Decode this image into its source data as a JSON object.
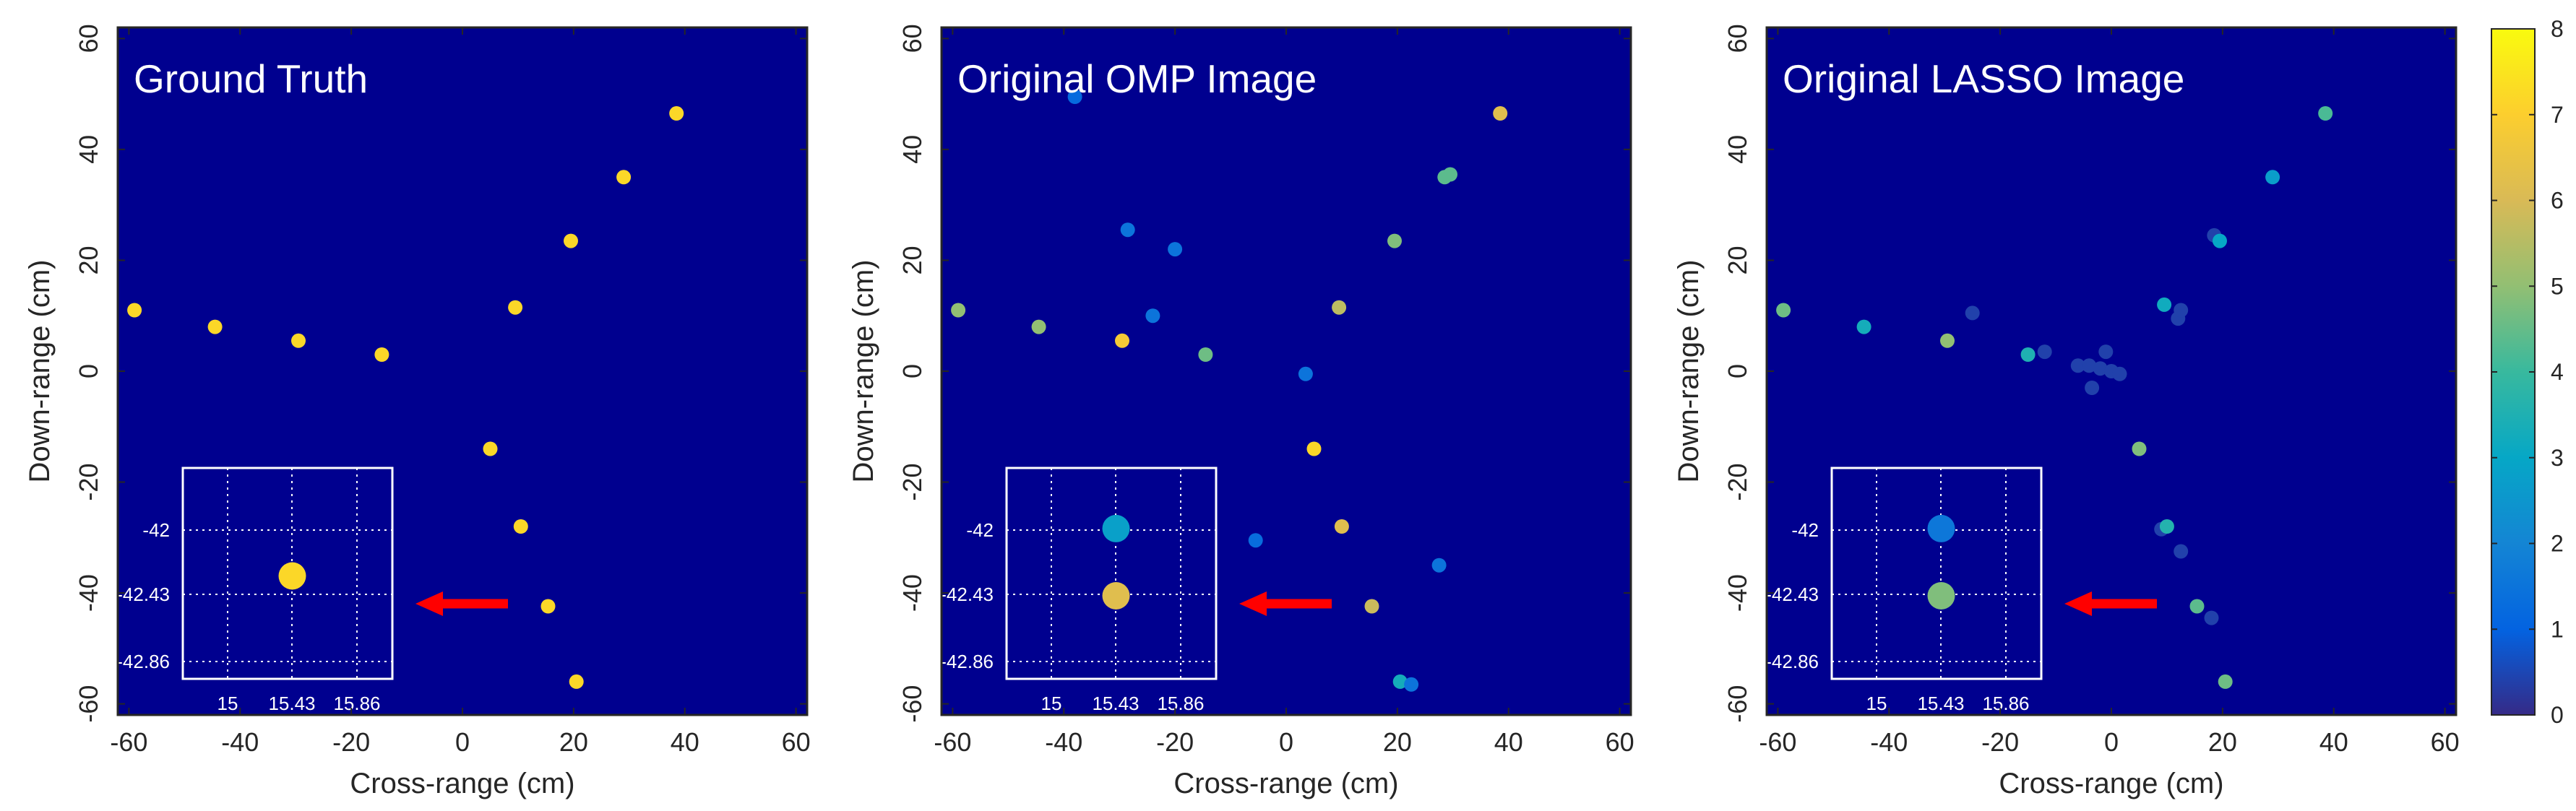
{
  "colormap": {
    "name": "parula",
    "stops": [
      "#352a87",
      "#0363e1",
      "#1485d4",
      "#06a7c6",
      "#38b99e",
      "#92bf73",
      "#d9ba56",
      "#fcce2e",
      "#f9fb0e"
    ]
  },
  "colors": {
    "background": "#00008f",
    "arrow": "#ff0000",
    "axis": "#262626",
    "grid_line": "#ffffff"
  },
  "chart_data": [
    {
      "type": "scatter",
      "title": "Ground Truth",
      "xlabel": "Cross-range (cm)",
      "ylabel": "Down-range (cm)",
      "xlim": [
        -62,
        62
      ],
      "ylim": [
        -62,
        62
      ],
      "xticks": [
        "-60",
        "-40",
        "-20",
        "0",
        "20",
        "40",
        "60"
      ],
      "yticks": [
        "-60",
        "-40",
        "-20",
        "0",
        "20",
        "40",
        "60"
      ],
      "points": [
        {
          "x": -59,
          "y": 11,
          "v": 7.2
        },
        {
          "x": -44.5,
          "y": 8,
          "v": 7.2
        },
        {
          "x": -29.5,
          "y": 5.5,
          "v": 7.2
        },
        {
          "x": -14.5,
          "y": 3,
          "v": 7.2
        },
        {
          "x": 5,
          "y": -14,
          "v": 7.2
        },
        {
          "x": 9.5,
          "y": 11.5,
          "v": 7.2
        },
        {
          "x": 10.5,
          "y": -28,
          "v": 7.2
        },
        {
          "x": 15.4,
          "y": -42.4,
          "v": 7.2
        },
        {
          "x": 19.5,
          "y": 23.5,
          "v": 7.2
        },
        {
          "x": 20.5,
          "y": -56,
          "v": 7.2
        },
        {
          "x": 29,
          "y": 35,
          "v": 7.2
        },
        {
          "x": 38.5,
          "y": 46.5,
          "v": 7.2
        }
      ],
      "inset": {
        "xticks": [
          "15",
          "15.43",
          "15.86"
        ],
        "yticks": [
          "-42",
          "-42.43",
          "-42.86"
        ],
        "points": [
          {
            "x": 15.43,
            "y": -42.3,
            "v": 7.2
          }
        ]
      }
    },
    {
      "type": "scatter",
      "title": "Original OMP Image",
      "xlabel": "Cross-range (cm)",
      "ylabel": "Down-range (cm)",
      "xlim": [
        -62,
        62
      ],
      "ylim": [
        -62,
        62
      ],
      "xticks": [
        "-60",
        "-40",
        "-20",
        "0",
        "20",
        "40",
        "60"
      ],
      "yticks": [
        "-60",
        "-40",
        "-20",
        "0",
        "20",
        "40",
        "60"
      ],
      "points": [
        {
          "x": -59,
          "y": 11,
          "v": 5
        },
        {
          "x": -44.5,
          "y": 8,
          "v": 5
        },
        {
          "x": -38,
          "y": 49.5,
          "v": 1.2
        },
        {
          "x": -29.5,
          "y": 5.5,
          "v": 6.8
        },
        {
          "x": -28.5,
          "y": 25.5,
          "v": 1.5
        },
        {
          "x": -24,
          "y": 10,
          "v": 1.5
        },
        {
          "x": -20,
          "y": 22,
          "v": 1.5
        },
        {
          "x": -14.5,
          "y": 3,
          "v": 4.6
        },
        {
          "x": -5.5,
          "y": -30.5,
          "v": 1.3
        },
        {
          "x": 3.5,
          "y": -0.5,
          "v": 1.5
        },
        {
          "x": 5,
          "y": -14,
          "v": 7.2
        },
        {
          "x": 9.5,
          "y": 11.5,
          "v": 5.6
        },
        {
          "x": 10,
          "y": -28,
          "v": 6.2
        },
        {
          "x": 15.4,
          "y": -42.4,
          "v": 5.8
        },
        {
          "x": 19.5,
          "y": 23.5,
          "v": 4.8
        },
        {
          "x": 20.5,
          "y": -56,
          "v": 3.3
        },
        {
          "x": 22.5,
          "y": -56.5,
          "v": 1.5
        },
        {
          "x": 27.5,
          "y": -35,
          "v": 1.5
        },
        {
          "x": 28.5,
          "y": 35,
          "v": 4.4
        },
        {
          "x": 29.5,
          "y": 35.5,
          "v": 4.4
        },
        {
          "x": 38.5,
          "y": 46.5,
          "v": 6.2
        }
      ],
      "inset": {
        "xticks": [
          "15",
          "15.43",
          "15.86"
        ],
        "yticks": [
          "-42",
          "-42.43",
          "-42.86"
        ],
        "points": [
          {
            "x": 15.43,
            "y": -41.99,
            "v": 2.8
          },
          {
            "x": 15.43,
            "y": -42.43,
            "v": 6.2
          }
        ]
      }
    },
    {
      "type": "scatter",
      "title": "Original LASSO Image",
      "xlabel": "Cross-range (cm)",
      "ylabel": "Down-range (cm)",
      "xlim": [
        -62,
        62
      ],
      "ylim": [
        -62,
        62
      ],
      "xticks": [
        "-60",
        "-40",
        "-20",
        "0",
        "20",
        "40",
        "60"
      ],
      "yticks": [
        "-60",
        "-40",
        "-20",
        "0",
        "20",
        "40",
        "60"
      ],
      "points": [
        {
          "x": -59,
          "y": 11,
          "v": 4.6
        },
        {
          "x": -44.5,
          "y": 8,
          "v": 3.3
        },
        {
          "x": -29.5,
          "y": 5.5,
          "v": 5
        },
        {
          "x": -25,
          "y": 10.5,
          "v": 0.4
        },
        {
          "x": -15,
          "y": 3,
          "v": 3.5
        },
        {
          "x": -12,
          "y": 3.5,
          "v": 0.4
        },
        {
          "x": -6,
          "y": 1,
          "v": 0.4
        },
        {
          "x": -4,
          "y": 1,
          "v": 0.4
        },
        {
          "x": -3.5,
          "y": -3,
          "v": 0.4
        },
        {
          "x": -2,
          "y": 0.5,
          "v": 0.4
        },
        {
          "x": -1,
          "y": 3.5,
          "v": 0.4
        },
        {
          "x": 0,
          "y": 0,
          "v": 0.4
        },
        {
          "x": 1.5,
          "y": -0.5,
          "v": 0.4
        },
        {
          "x": 5,
          "y": -14,
          "v": 4.8
        },
        {
          "x": 9.5,
          "y": 12,
          "v": 3.2
        },
        {
          "x": 9,
          "y": -28.5,
          "v": 0.4
        },
        {
          "x": 10,
          "y": -28,
          "v": 3.6
        },
        {
          "x": 12,
          "y": 9.5,
          "v": 0.4
        },
        {
          "x": 12.5,
          "y": 11,
          "v": 0.4
        },
        {
          "x": 12.5,
          "y": -32.5,
          "v": 0.4
        },
        {
          "x": 15.4,
          "y": -42.4,
          "v": 4.4
        },
        {
          "x": 18,
          "y": -44.5,
          "v": 0.4
        },
        {
          "x": 18.5,
          "y": 24.5,
          "v": 0.4
        },
        {
          "x": 19.5,
          "y": 23.5,
          "v": 3
        },
        {
          "x": 20.5,
          "y": -56,
          "v": 4.6
        },
        {
          "x": 29,
          "y": 35,
          "v": 2.7
        },
        {
          "x": 38.5,
          "y": 46.5,
          "v": 4.2
        }
      ],
      "inset": {
        "xticks": [
          "15",
          "15.43",
          "15.86"
        ],
        "yticks": [
          "-42",
          "-42.43",
          "-42.86"
        ],
        "points": [
          {
            "x": 15.43,
            "y": -41.99,
            "v": 1.6
          },
          {
            "x": 15.43,
            "y": -42.43,
            "v": 4.8
          }
        ]
      }
    }
  ],
  "colorbar": {
    "min": 0,
    "max": 8,
    "ticks": [
      "0",
      "1",
      "2",
      "3",
      "4",
      "5",
      "6",
      "7",
      "8"
    ]
  }
}
